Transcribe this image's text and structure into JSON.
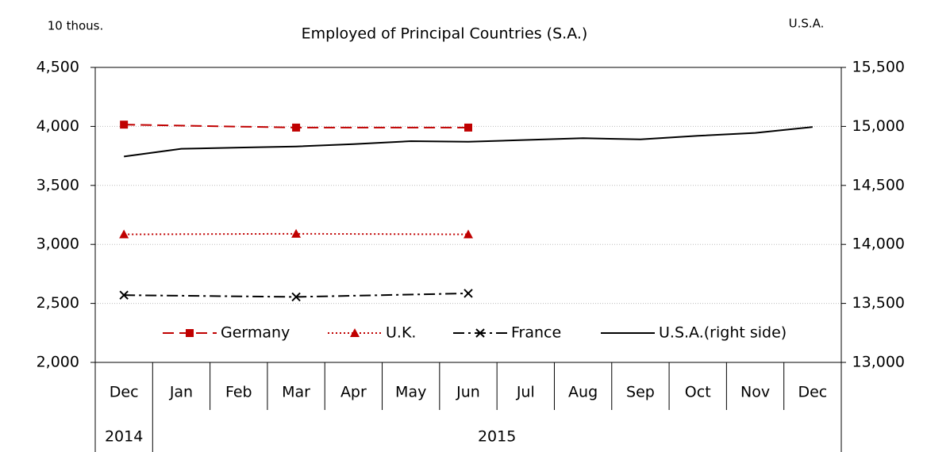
{
  "chart_data": {
    "type": "line",
    "title": "Employed of Principal Countries (S.A.)",
    "ylabel": "10 thous.",
    "y2label": "U.S.A.",
    "categories": [
      "Dec",
      "Jan",
      "Feb",
      "Mar",
      "Apr",
      "May",
      "Jun",
      "Jul",
      "Aug",
      "Sep",
      "Oct",
      "Nov",
      "Dec"
    ],
    "years": [
      "2014",
      "2015",
      "2015",
      "2015",
      "2015",
      "2015",
      "2015",
      "2015",
      "2015",
      "2015",
      "2015",
      "2015",
      "2015"
    ],
    "ylim": [
      2000,
      4500
    ],
    "yticks": [
      {
        "value": 2000,
        "label": "2,000"
      },
      {
        "value": 2500,
        "label": "2,500"
      },
      {
        "value": 3000,
        "label": "3,000"
      },
      {
        "value": 3500,
        "label": "3,500"
      },
      {
        "value": 4000,
        "label": "4,000"
      },
      {
        "value": 4500,
        "label": "4,500"
      }
    ],
    "y2lim": [
      13000,
      15500
    ],
    "y2ticks": [
      {
        "value": 13000,
        "label": "13,000"
      },
      {
        "value": 13500,
        "label": "13,500"
      },
      {
        "value": 14000,
        "label": "14,000"
      },
      {
        "value": 14500,
        "label": "14,500"
      },
      {
        "value": 15000,
        "label": "15,000"
      },
      {
        "value": 15500,
        "label": "15,500"
      }
    ],
    "grid": true,
    "legend": "bottom",
    "connect_gaps": true,
    "series": [
      {
        "name": "Germany",
        "color": "#c00000",
        "dash": "dashed",
        "marker": "square",
        "values": [
          4015,
          null,
          null,
          3990,
          null,
          null,
          3990,
          null,
          null,
          null,
          null,
          null,
          null
        ]
      },
      {
        "name": "U.K.",
        "color": "#c00000",
        "dash": "dotted",
        "marker": "triangle",
        "values": [
          3085,
          null,
          null,
          3090,
          null,
          null,
          3085,
          null,
          null,
          null,
          null,
          null,
          null
        ]
      },
      {
        "name": "France",
        "color": "#000000",
        "dash": "dashdot",
        "marker": "x",
        "values": [
          2570,
          null,
          null,
          2555,
          null,
          null,
          2585,
          null,
          null,
          null,
          null,
          null,
          null
        ]
      },
      {
        "name": "U.S.A.(right side)",
        "color": "#000000",
        "dash": "solid",
        "marker": "none",
        "axis": "y2",
        "values": [
          14745,
          14810,
          14820,
          14830,
          14850,
          14875,
          14870,
          14885,
          14900,
          14890,
          14920,
          14945,
          14995
        ]
      }
    ]
  }
}
